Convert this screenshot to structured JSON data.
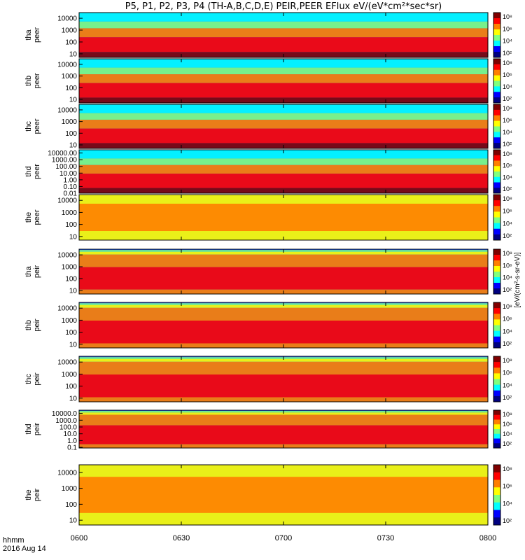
{
  "title": "P5, P1, P2, P3, P4 (TH-A,B,C,D,E) PEIR,PEER EFlux eV/(eV*cm²*sec*sr)",
  "colorbar_unit_label": "[eV/(cm²-s-sr-eV)]",
  "footer": {
    "time_format": "hhmm",
    "date": "2016 Aug 14"
  },
  "colormap": [
    "#00007f",
    "#0000ff",
    "#00ffff",
    "#7fff7f",
    "#ffff00",
    "#ff7f00",
    "#ff0000",
    "#7f0000"
  ],
  "chart_data": {
    "type": "heatmap",
    "x_ticks": [
      "0600",
      "0630",
      "0700",
      "0730",
      "0800"
    ],
    "x_range": [
      "06:00",
      "08:00"
    ],
    "scale": "log",
    "panels": [
      {
        "name": "tha peer",
        "yticks": [
          "10000",
          "1000",
          "100",
          "10"
        ],
        "ylim": [
          5,
          30000
        ],
        "cbar_ticks": [
          "10⁸",
          "10⁶",
          "10⁴",
          "10²"
        ]
      },
      {
        "name": "thb peer",
        "yticks": [
          "10000",
          "1000",
          "100",
          "10"
        ],
        "ylim": [
          5,
          30000
        ],
        "cbar_ticks": [
          "10⁸",
          "10⁶",
          "10⁴",
          "10²"
        ]
      },
      {
        "name": "thc peer",
        "yticks": [
          "10000",
          "1000",
          "100",
          "10"
        ],
        "ylim": [
          5,
          30000
        ],
        "cbar_ticks": [
          "10⁸",
          "10⁶",
          "10⁴",
          "10²"
        ]
      },
      {
        "name": "thd peer",
        "yticks": [
          "10000.00",
          "1000.00",
          "100.00",
          "10.00",
          "1.00",
          "0.10",
          "0.01"
        ],
        "ylim": [
          0.01,
          30000
        ],
        "cbar_ticks": [
          "10⁸",
          "10⁶",
          "10⁴",
          "10²"
        ]
      },
      {
        "name": "the peer",
        "yticks": [
          "10000",
          "1000",
          "100",
          "10"
        ],
        "ylim": [
          5,
          30000
        ],
        "cbar_ticks": [
          "10⁸",
          "10⁶",
          "10⁴",
          "10²"
        ]
      },
      {
        "name": "tha peir",
        "yticks": [
          "10000",
          "1000",
          "100",
          "10"
        ],
        "ylim": [
          5,
          30000
        ],
        "cbar_ticks": [
          "10⁸",
          "10⁶",
          "10⁴",
          "10²"
        ]
      },
      {
        "name": "thb peir",
        "yticks": [
          "10000",
          "1000",
          "100",
          "10"
        ],
        "ylim": [
          5,
          30000
        ],
        "cbar_ticks": [
          "10⁸",
          "10⁶",
          "10⁴",
          "10²"
        ]
      },
      {
        "name": "thc peir",
        "yticks": [
          "10000",
          "1000",
          "100",
          "10"
        ],
        "ylim": [
          5,
          30000
        ],
        "cbar_ticks": [
          "10⁸",
          "10⁶",
          "10⁴",
          "10²"
        ]
      },
      {
        "name": "thd peir",
        "yticks": [
          "10000.0",
          "1000.0",
          "100.0",
          "10.0",
          "1.0",
          "0.1"
        ],
        "ylim": [
          0.08,
          30000
        ],
        "cbar_ticks": [
          "10⁸",
          "10⁶",
          "10⁴",
          "10²"
        ]
      },
      {
        "name": "the peir",
        "yticks": [
          "10000",
          "1000",
          "100",
          "10"
        ],
        "ylim": [
          5,
          30000
        ],
        "cbar_ticks": [
          "10⁸",
          "10⁶",
          "10⁴",
          "10²"
        ]
      }
    ]
  }
}
